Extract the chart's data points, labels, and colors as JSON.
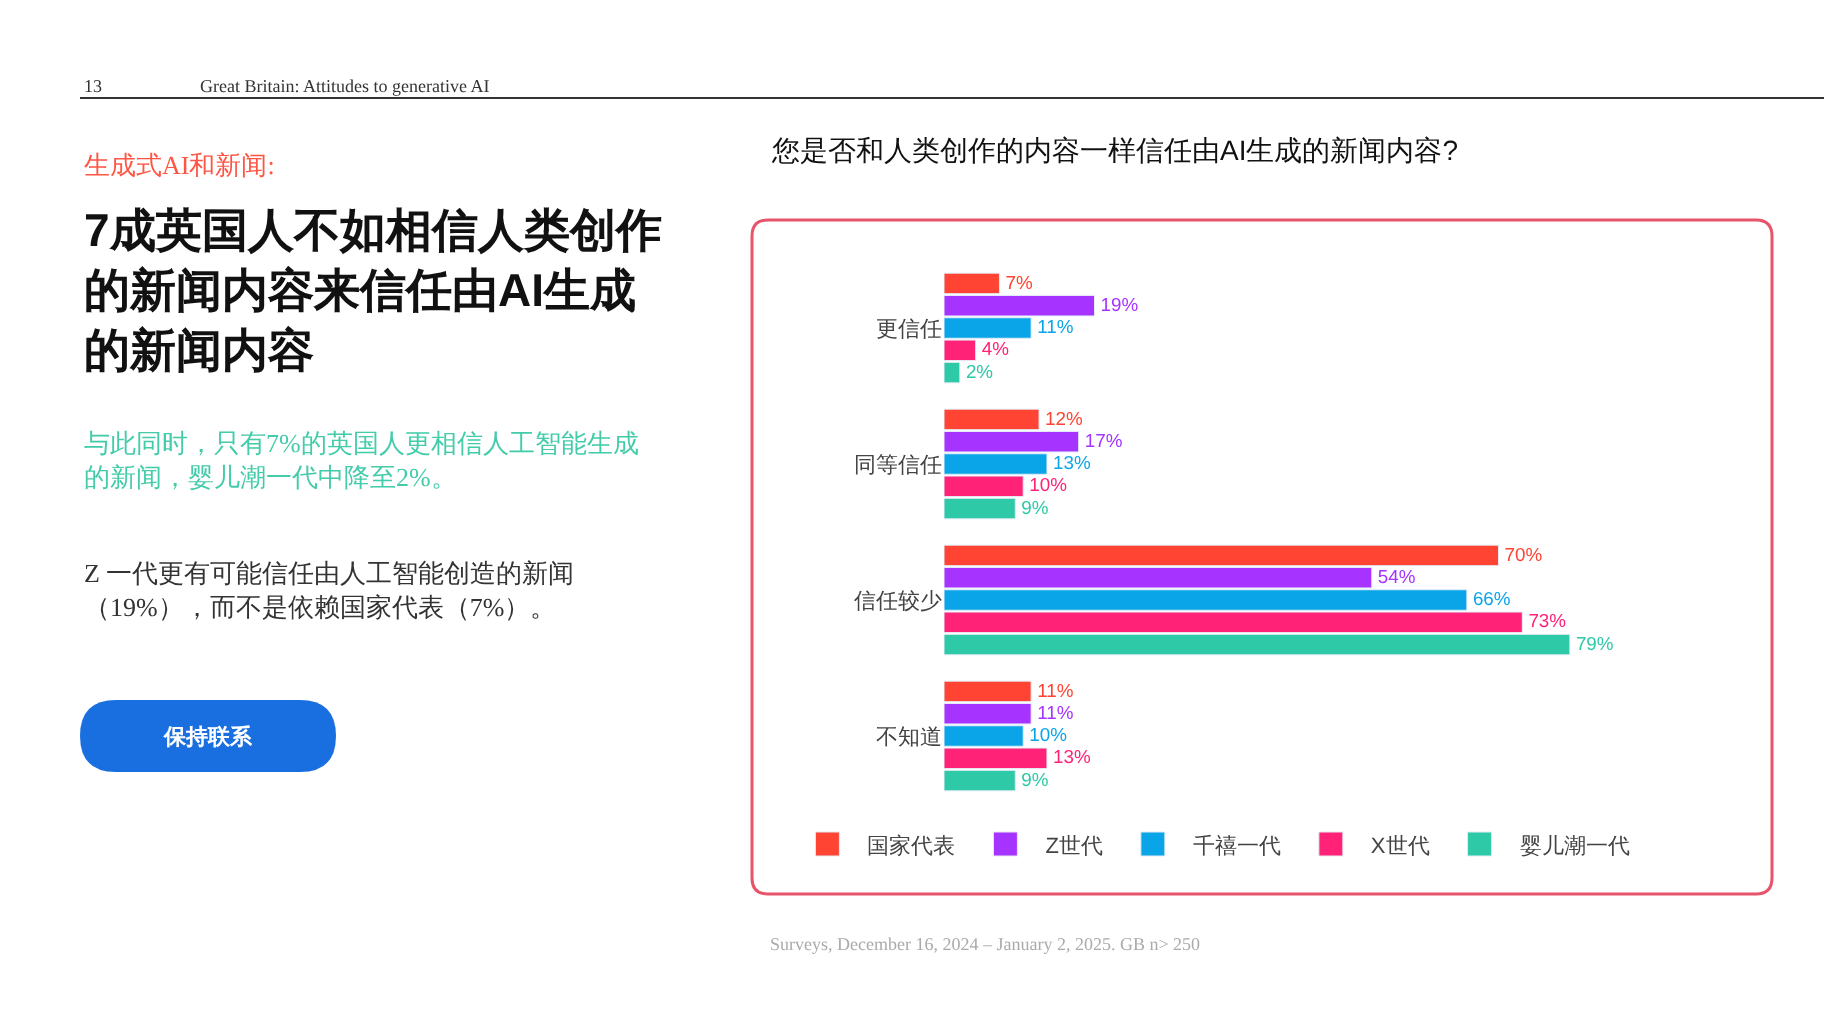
{
  "chart_data": {
    "type": "bar",
    "orientation": "horizontal",
    "title": "您是否和人类创作的内容一样信任由AI生成的新闻内容?",
    "categories": [
      "更信任",
      "同等信任",
      "信任较少",
      "不知道"
    ],
    "series": [
      {
        "name": "国家代表",
        "color": "#ff4433",
        "values": [
          7,
          12,
          70,
          11
        ],
        "value_labels": [
          "7%",
          "12%",
          "70%",
          "11%"
        ]
      },
      {
        "name": "Z世代",
        "color": "#a633ff",
        "values": [
          19,
          17,
          54,
          11
        ],
        "value_labels": [
          "19%",
          "17%",
          "54%",
          "11%"
        ]
      },
      {
        "name": "千禧一代",
        "color": "#0aa5e8",
        "values": [
          11,
          13,
          66,
          10
        ],
        "value_labels": [
          "11%",
          "13%",
          "66%",
          "10%"
        ]
      },
      {
        "name": "X世代",
        "color": "#ff2277",
        "values": [
          4,
          10,
          73,
          13
        ],
        "value_labels": [
          "4%",
          "10%",
          "73%",
          "13%"
        ]
      },
      {
        "name": "婴儿潮一代",
        "color": "#2ec9a7",
        "values": [
          2,
          9,
          79,
          9
        ],
        "value_labels": [
          "2%",
          "9%",
          "79%",
          "9%"
        ]
      }
    ],
    "legend": "bottom",
    "annotations": [
      "13",
      "Great Britain: Attitudes to generative AI",
      "生成式AI和新闻:",
      "7成英国人不如相信人类创作的新闻内容来信任由AI生成的新闻内容",
      "与此同时，只有7%的英国人更相信人工智能生成的新闻，婴儿潮一代中降至2%。",
      "Z 一代更有可能信任由人工智能创造的新闻（19%），而不是依赖国家代表（7%）。",
      "保持联系",
      "Surveys, December 16, 2024 – January 2, 2025. GB n> 250"
    ]
  }
}
